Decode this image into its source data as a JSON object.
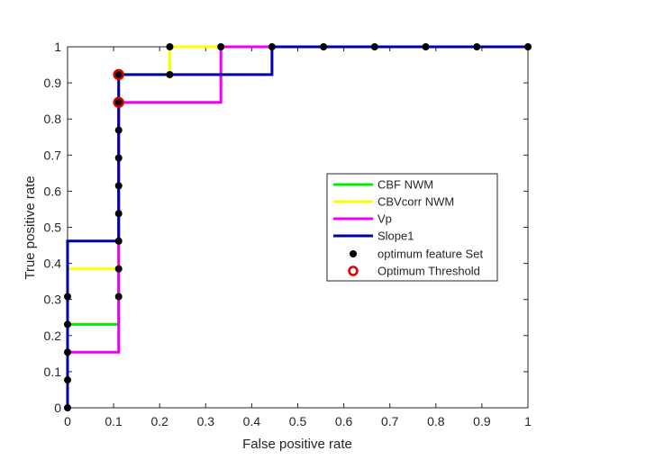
{
  "chart_data": {
    "type": "line",
    "title": "",
    "xlabel": "False positive rate",
    "ylabel": "True positive rate",
    "xlim": [
      0,
      1
    ],
    "ylim": [
      0,
      1
    ],
    "grid": false,
    "legend_position": "center-right",
    "xticks": [
      "0",
      "0.1",
      "0.2",
      "0.3",
      "0.4",
      "0.5",
      "0.6",
      "0.7",
      "0.8",
      "0.9",
      "1"
    ],
    "yticks": [
      "0",
      "0.1",
      "0.2",
      "0.3",
      "0.4",
      "0.5",
      "0.6",
      "0.7",
      "0.8",
      "0.9",
      "1"
    ],
    "series": [
      {
        "name": "CBF NWM",
        "color": "#00ee00",
        "x": [
          0,
          0,
          0.111,
          0.111,
          0.222,
          0.222,
          1
        ],
        "y": [
          0,
          0.231,
          0.231,
          0.923,
          0.923,
          1,
          1
        ]
      },
      {
        "name": "CBVcorr NWM",
        "color": "#ffff00",
        "x": [
          0,
          0,
          0.111,
          0.111,
          0.222,
          0.222,
          1
        ],
        "y": [
          0,
          0.385,
          0.385,
          0.923,
          0.923,
          1,
          1
        ]
      },
      {
        "name": "Vp",
        "color": "#ee00ee",
        "x": [
          0,
          0,
          0.111,
          0.111,
          0.333,
          0.333,
          1
        ],
        "y": [
          0,
          0.154,
          0.154,
          0.846,
          0.846,
          1,
          1
        ]
      },
      {
        "name": "Slope1",
        "color": "#0000aa",
        "x": [
          0,
          0,
          0.111,
          0.111,
          0.444,
          0.444,
          1
        ],
        "y": [
          0,
          0.462,
          0.462,
          0.923,
          0.923,
          1,
          1
        ]
      }
    ],
    "optimum_feature_set": {
      "name": "optimum feature Set",
      "color": "#000000",
      "points": [
        [
          0,
          0
        ],
        [
          0,
          0.077
        ],
        [
          0,
          0.154
        ],
        [
          0,
          0.231
        ],
        [
          0,
          0.308
        ],
        [
          0.111,
          0.308
        ],
        [
          0.111,
          0.385
        ],
        [
          0.111,
          0.462
        ],
        [
          0.111,
          0.538
        ],
        [
          0.111,
          0.615
        ],
        [
          0.111,
          0.692
        ],
        [
          0.111,
          0.769
        ],
        [
          0.111,
          0.846
        ],
        [
          0.111,
          0.923
        ],
        [
          0.222,
          0.923
        ],
        [
          0.222,
          1
        ],
        [
          0.333,
          1
        ],
        [
          0.444,
          1
        ],
        [
          0.556,
          1
        ],
        [
          0.667,
          1
        ],
        [
          0.778,
          1
        ],
        [
          0.889,
          1
        ],
        [
          1,
          1
        ]
      ]
    },
    "optimum_threshold": {
      "name": "Optimum Threshold",
      "color": "#dd0000",
      "points": [
        [
          0.111,
          0.923
        ],
        [
          0.111,
          0.846
        ]
      ]
    }
  }
}
